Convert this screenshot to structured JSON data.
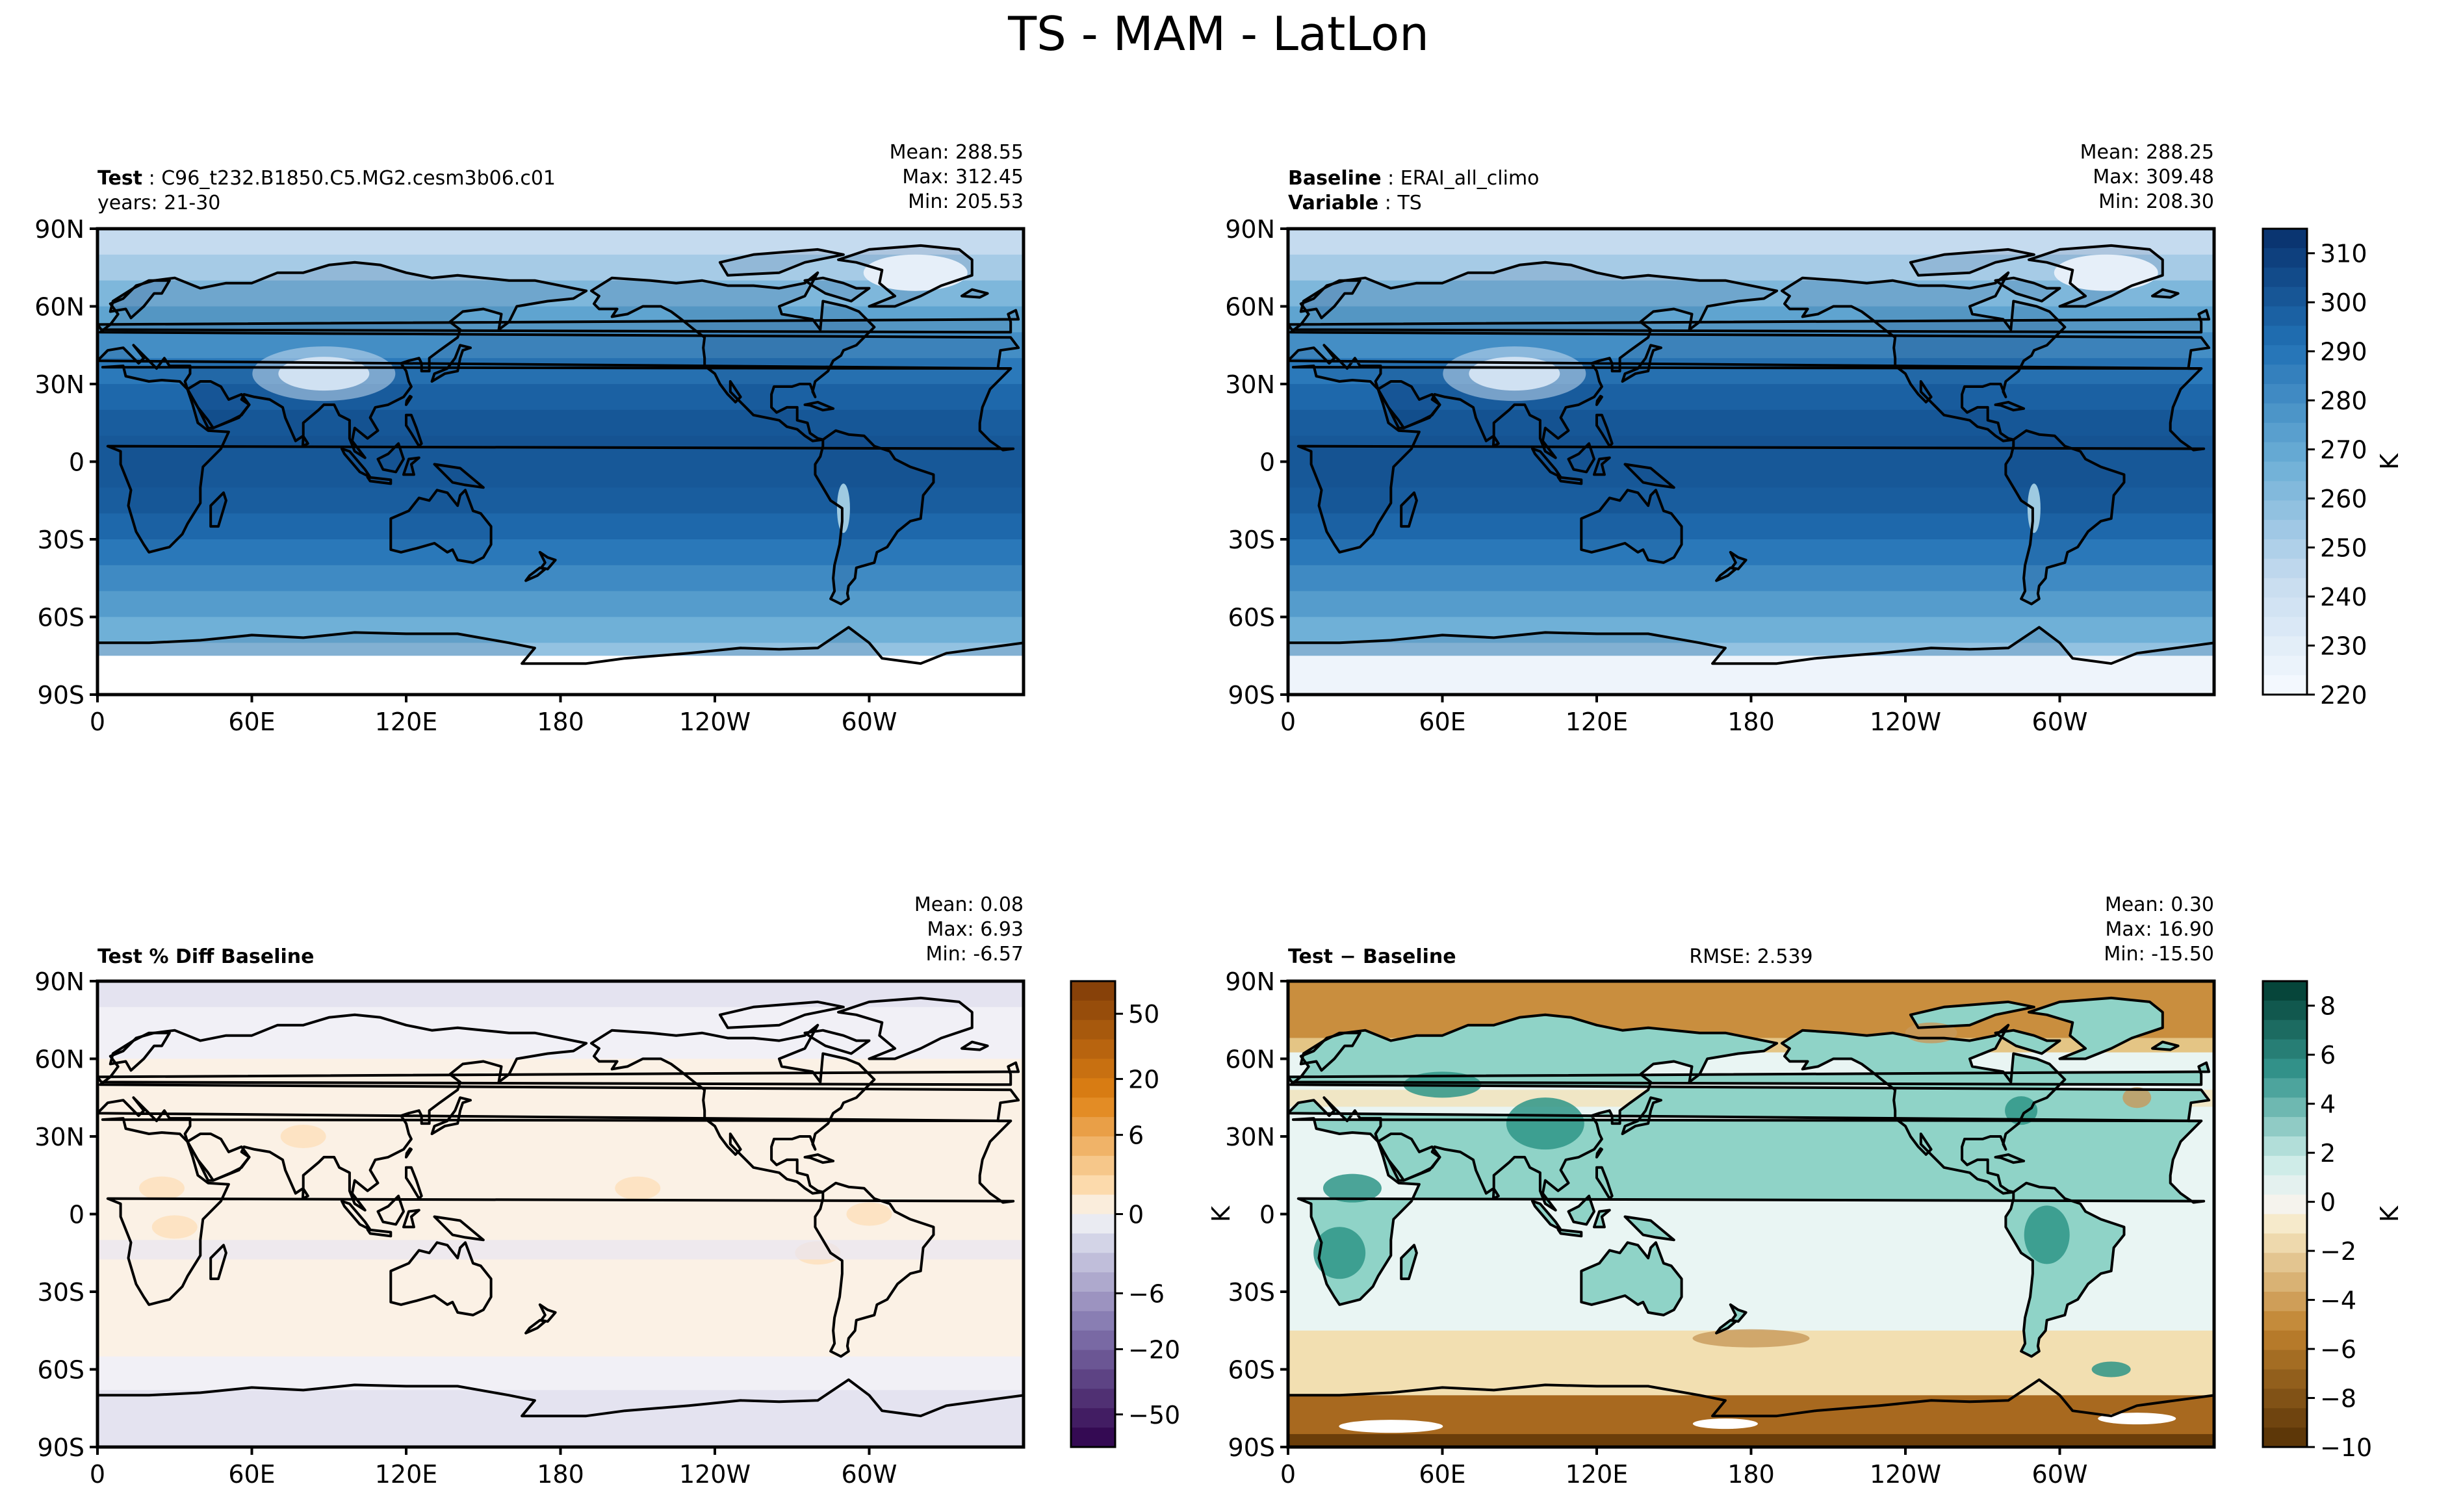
{
  "figure": {
    "title": "TS - MAM - LatLon"
  },
  "panels": [
    {
      "id": "test",
      "left_label": "Test",
      "left_value": "C96_t232.B1850.C5.MG2.cesm3b06.c01",
      "left_line2_label": "",
      "left_line2_value": "",
      "left_line2_plain": "years: 21-30",
      "center_text": "",
      "stats": {
        "mean": "Mean: 288.55",
        "max": "Max: 312.45",
        "min": "Min: 205.53"
      },
      "field": "temp"
    },
    {
      "id": "baseline",
      "left_label": "Baseline",
      "left_value": "ERAI_all_climo",
      "left_line2_label": "Variable",
      "left_line2_value": "TS",
      "left_line2_plain": "",
      "center_text": "",
      "stats": {
        "mean": "Mean: 288.25",
        "max": "Max: 309.48",
        "min": "Min: 208.30"
      },
      "field": "temp"
    },
    {
      "id": "pctdiff",
      "left_label": "Test % Diff Baseline",
      "left_value": "",
      "left_line2_label": "",
      "left_line2_value": "",
      "left_line2_plain": "",
      "center_text": "",
      "stats": {
        "mean": "Mean:  0.08",
        "max": "Max:  6.93",
        "min": "Min: -6.57"
      },
      "field": "pct"
    },
    {
      "id": "diff",
      "left_label": "Test − Baseline",
      "left_value": "",
      "left_line2_label": "",
      "left_line2_value": "",
      "left_line2_plain": "",
      "center_text": "RMSE: 2.539",
      "stats": {
        "mean": "Mean:  0.30",
        "max": "Max: 16.90",
        "min": "Min: -15.50"
      },
      "field": "diff"
    }
  ],
  "axes": {
    "lat_ticks": [
      "90N",
      "60N",
      "30N",
      "0",
      "30S",
      "60S",
      "90S"
    ],
    "lon_ticks": [
      "0",
      "60E",
      "120E",
      "180",
      "120W",
      "60W"
    ],
    "side_label": "K"
  },
  "colorbars": {
    "temp": {
      "ticks": [
        "310",
        "300",
        "290",
        "280",
        "270",
        "260",
        "250",
        "240",
        "230",
        "220"
      ],
      "units": "K",
      "range": [
        220,
        315
      ]
    },
    "pct": {
      "ticks": [
        "50",
        "20",
        "6",
        "0",
        "−6",
        "−20",
        "−50"
      ],
      "units": ""
    },
    "diff": {
      "ticks": [
        "8",
        "6",
        "4",
        "2",
        "0",
        "−2",
        "−4",
        "−6",
        "−8",
        "−10"
      ],
      "units": "K",
      "range": [
        -10,
        9
      ]
    }
  },
  "chart_data": [
    {
      "type": "heatmap",
      "title": "Test: C96_t232.B1850.C5.MG2.cesm3b06.c01",
      "xlabel": "",
      "ylabel": "",
      "x": [
        "0",
        "60E",
        "120E",
        "180",
        "120W",
        "60W"
      ],
      "y": [
        "90N",
        "60N",
        "30N",
        "0",
        "30S",
        "60S",
        "90S"
      ],
      "colorbar_range": [
        220,
        315
      ],
      "colorbar_units": "K",
      "stats": {
        "mean": 288.55,
        "max": 312.45,
        "min": 205.53
      }
    },
    {
      "type": "heatmap",
      "title": "Baseline: ERAI_all_climo",
      "xlabel": "",
      "ylabel": "",
      "x": [
        "0",
        "60E",
        "120E",
        "180",
        "120W",
        "60W"
      ],
      "y": [
        "90N",
        "60N",
        "30N",
        "0",
        "30S",
        "60S",
        "90S"
      ],
      "colorbar_range": [
        220,
        315
      ],
      "colorbar_units": "K",
      "stats": {
        "mean": 288.25,
        "max": 309.48,
        "min": 208.3
      }
    },
    {
      "type": "heatmap",
      "title": "Test % Diff Baseline",
      "xlabel": "",
      "ylabel": "",
      "x": [
        "0",
        "60E",
        "120E",
        "180",
        "120W",
        "60W"
      ],
      "y": [
        "90N",
        "60N",
        "30N",
        "0",
        "30S",
        "60S",
        "90S"
      ],
      "colorbar_ticks": [
        -50,
        -20,
        -6,
        0,
        6,
        20,
        50
      ],
      "stats": {
        "mean": 0.08,
        "max": 6.93,
        "min": -6.57
      }
    },
    {
      "type": "heatmap",
      "title": "Test − Baseline",
      "xlabel": "",
      "ylabel": "K",
      "x": [
        "0",
        "60E",
        "120E",
        "180",
        "120W",
        "60W"
      ],
      "y": [
        "90N",
        "60N",
        "30N",
        "0",
        "30S",
        "60S",
        "90S"
      ],
      "colorbar_range": [
        -10,
        9
      ],
      "colorbar_units": "K",
      "stats": {
        "mean": 0.3,
        "max": 16.9,
        "min": -15.5,
        "rmse": 2.539
      }
    }
  ]
}
